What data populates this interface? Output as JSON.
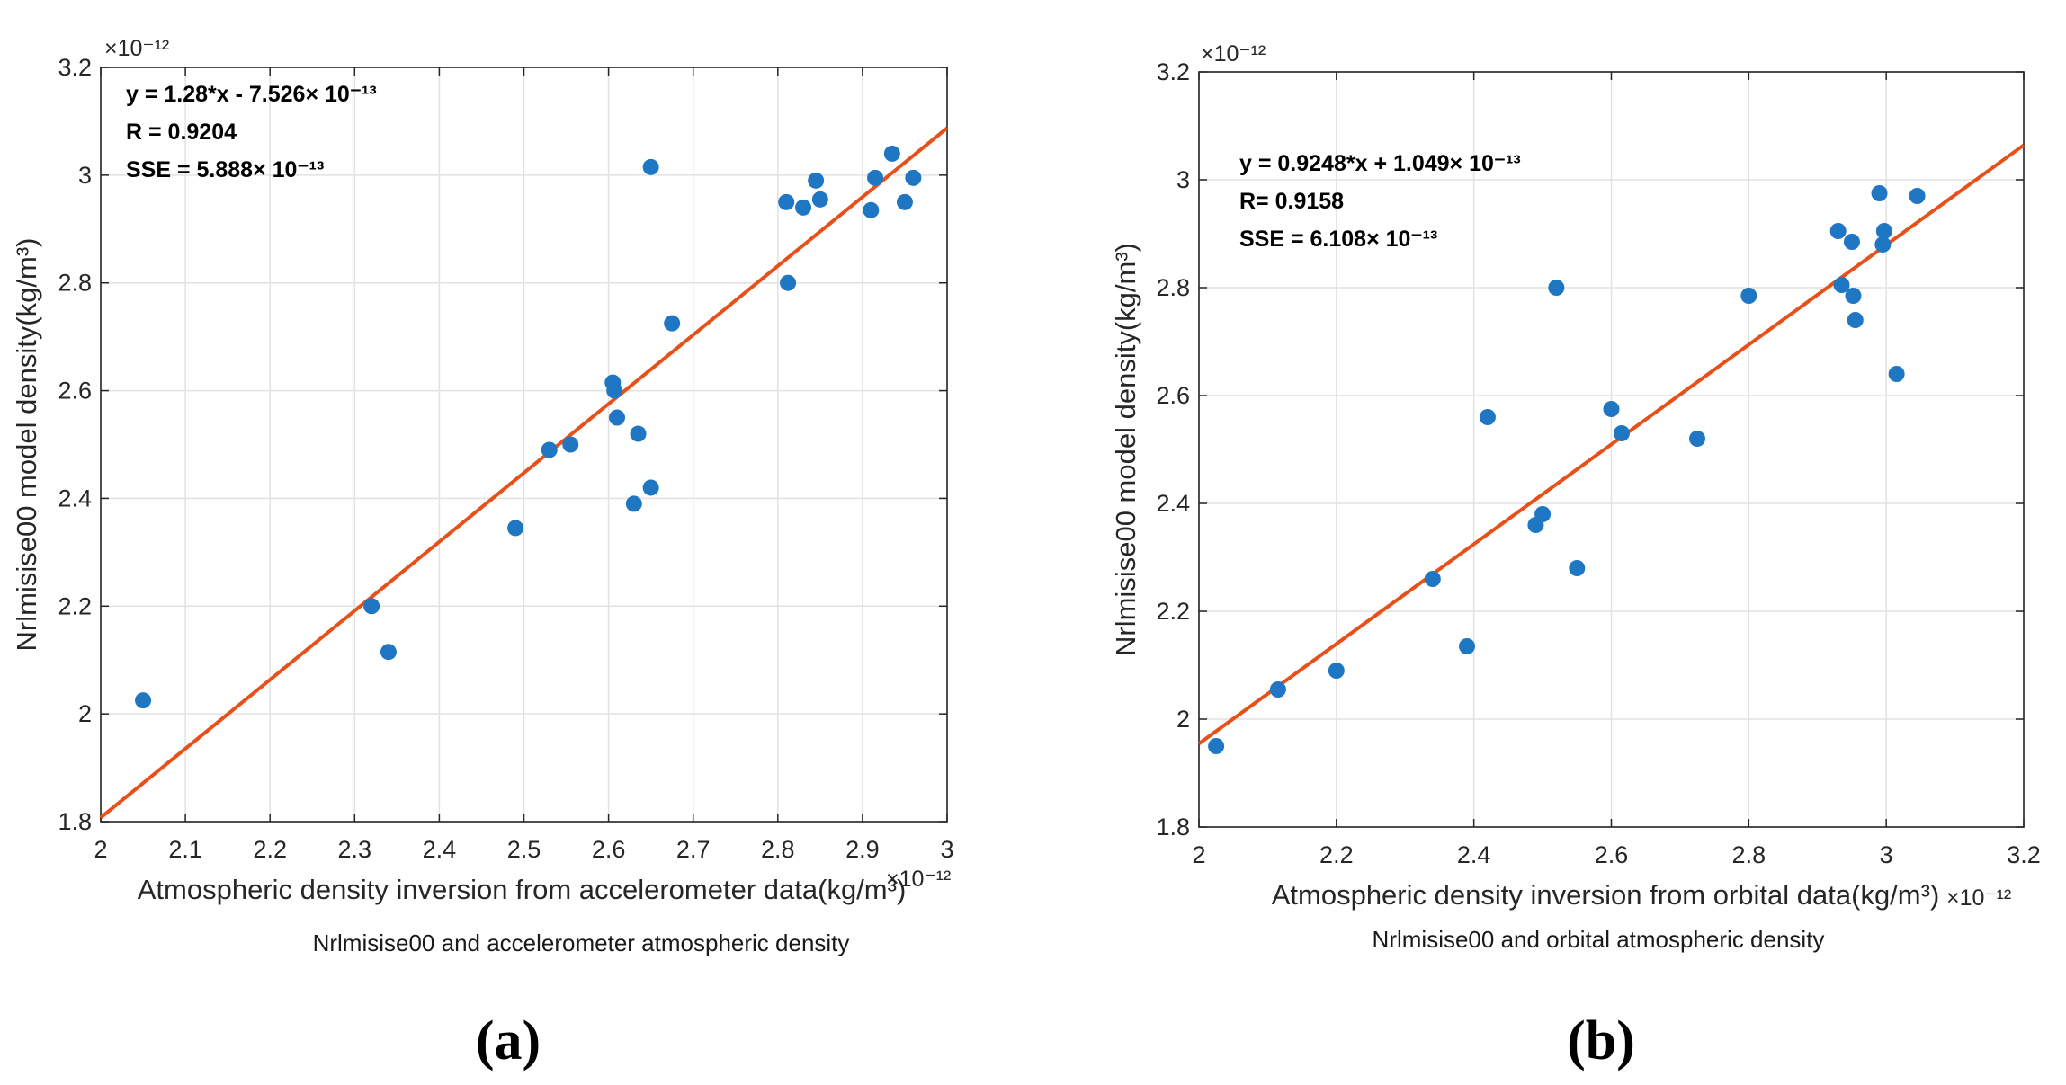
{
  "chart_data": [
    {
      "type": "scatter",
      "panel_label": "(a)",
      "caption": "Nrlmisise00 and accelerometer atmospheric density",
      "xlabel": "Atmospheric density inversion from accelerometer data(kg/m³)",
      "ylabel": "Nrlmisise00 model density(kg/m³)",
      "x_exponent": "×10⁻¹²",
      "y_exponent": "×10⁻¹²",
      "xlim": [
        2,
        3
      ],
      "ylim": [
        1.8,
        3.2
      ],
      "xticks": [
        2,
        2.1,
        2.2,
        2.3,
        2.4,
        2.5,
        2.6,
        2.7,
        2.8,
        2.9,
        3
      ],
      "yticks": [
        1.8,
        2,
        2.2,
        2.4,
        2.6,
        2.8,
        3,
        3.2
      ],
      "grid": true,
      "annotations": [
        "y = 1.28*x - 7.526× 10⁻¹³",
        "R = 0.9204",
        "SSE = 5.888× 10⁻¹³"
      ],
      "fit": {
        "slope": 1.28,
        "intercept": -0.7526,
        "color": "#e8501a"
      },
      "marker_color": "#1f77c4",
      "points": [
        [
          2.05,
          2.025
        ],
        [
          2.32,
          2.2
        ],
        [
          2.34,
          2.115
        ],
        [
          2.49,
          2.345
        ],
        [
          2.53,
          2.49
        ],
        [
          2.555,
          2.5
        ],
        [
          2.605,
          2.615
        ],
        [
          2.607,
          2.6
        ],
        [
          2.61,
          2.55
        ],
        [
          2.63,
          2.39
        ],
        [
          2.635,
          2.52
        ],
        [
          2.65,
          2.42
        ],
        [
          2.65,
          3.015
        ],
        [
          2.675,
          2.725
        ],
        [
          2.81,
          2.95
        ],
        [
          2.812,
          2.8
        ],
        [
          2.83,
          2.94
        ],
        [
          2.845,
          2.99
        ],
        [
          2.85,
          2.955
        ],
        [
          2.91,
          2.935
        ],
        [
          2.915,
          2.995
        ],
        [
          2.935,
          3.04
        ],
        [
          2.95,
          2.95
        ],
        [
          2.96,
          2.995
        ]
      ]
    },
    {
      "type": "scatter",
      "panel_label": "(b)",
      "caption": "Nrlmisise00 and orbital atmospheric density",
      "xlabel": "Atmospheric density inversion from orbital data(kg/m³)",
      "ylabel": "Nrlmisise00 model density(kg/m³)",
      "x_exponent": "×10⁻¹²",
      "y_exponent": "×10⁻¹²",
      "xlim": [
        2,
        3.2
      ],
      "ylim": [
        1.8,
        3.2
      ],
      "xticks": [
        2,
        2.2,
        2.4,
        2.6,
        2.8,
        3,
        3.2
      ],
      "yticks": [
        1.8,
        2,
        2.2,
        2.4,
        2.6,
        2.8,
        3,
        3.2
      ],
      "grid": true,
      "annotations": [
        "y = 0.9248*x + 1.049× 10⁻¹³",
        "R= 0.9158",
        "SSE = 6.108× 10⁻¹³"
      ],
      "fit": {
        "slope": 0.9248,
        "intercept": 0.1049,
        "color": "#e8501a"
      },
      "marker_color": "#1f77c4",
      "points": [
        [
          2.025,
          1.95
        ],
        [
          2.115,
          2.055
        ],
        [
          2.2,
          2.09
        ],
        [
          2.34,
          2.26
        ],
        [
          2.39,
          2.135
        ],
        [
          2.42,
          2.56
        ],
        [
          2.49,
          2.36
        ],
        [
          2.5,
          2.38
        ],
        [
          2.52,
          2.8
        ],
        [
          2.55,
          2.28
        ],
        [
          2.6,
          2.575
        ],
        [
          2.615,
          2.53
        ],
        [
          2.725,
          2.52
        ],
        [
          2.8,
          2.785
        ],
        [
          2.93,
          2.905
        ],
        [
          2.935,
          2.805
        ],
        [
          2.95,
          2.885
        ],
        [
          2.952,
          2.785
        ],
        [
          2.955,
          2.74
        ],
        [
          2.99,
          2.975
        ],
        [
          2.995,
          2.88
        ],
        [
          2.997,
          2.905
        ],
        [
          3.015,
          2.64
        ],
        [
          3.045,
          2.97
        ]
      ]
    }
  ]
}
